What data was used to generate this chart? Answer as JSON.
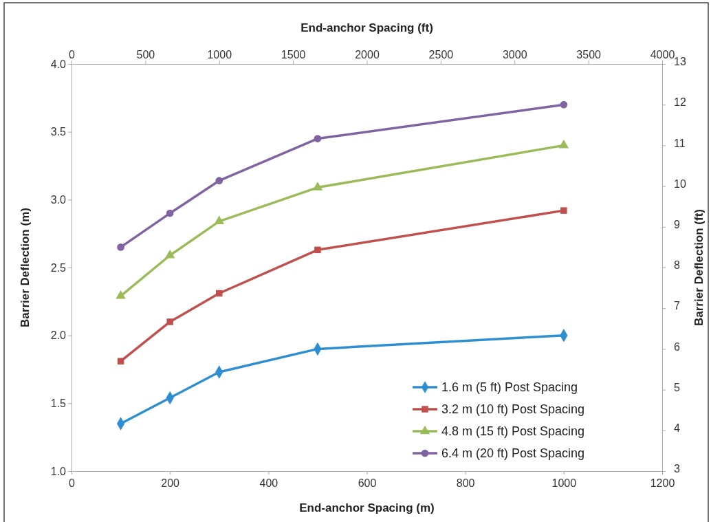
{
  "chart_data": {
    "type": "line",
    "xlabel": "End-anchor Spacing (m)",
    "ylabel": "Barrier Deflection (m)",
    "x2label": "End-anchor Spacing (ft)",
    "y2label": "Barrier Deflection (ft)",
    "x": [
      100,
      200,
      300,
      500,
      1000
    ],
    "series": [
      {
        "name": "1.6 m (5 ft) Post Spacing",
        "color": "#2e8fd0",
        "marker": "diamond",
        "values": [
          1.35,
          1.54,
          1.73,
          1.9,
          2.0
        ]
      },
      {
        "name": "3.2 m (10 ft) Post Spacing",
        "color": "#c0504d",
        "marker": "square",
        "values": [
          1.81,
          2.1,
          2.31,
          2.63,
          2.92
        ]
      },
      {
        "name": "4.8 m (15 ft) Post Spacing",
        "color": "#9bbb59",
        "marker": "triangle",
        "values": [
          2.29,
          2.59,
          2.84,
          3.09,
          3.4
        ]
      },
      {
        "name": "6.4 m (20 ft) Post Spacing",
        "color": "#8064a2",
        "marker": "circle",
        "values": [
          2.65,
          2.9,
          3.14,
          3.45,
          3.7
        ]
      }
    ],
    "xlim": [
      0,
      1200
    ],
    "xticks": [
      0,
      200,
      400,
      600,
      800,
      1000,
      1200
    ],
    "ylim": [
      1,
      4
    ],
    "yticks": [
      {
        "value": 1,
        "label": "1.0"
      },
      {
        "value": 1.5,
        "label": "1.5"
      },
      {
        "value": 2,
        "label": "2.0"
      },
      {
        "value": 2.5,
        "label": "2.5"
      },
      {
        "value": 3,
        "label": "3.0"
      },
      {
        "value": 3.5,
        "label": "3.5"
      },
      {
        "value": 4,
        "label": "4.0"
      }
    ],
    "x2lim": [
      0,
      4000
    ],
    "x2ticks": [
      0,
      500,
      1000,
      1500,
      2000,
      2500,
      3000,
      3500,
      4000
    ],
    "y2lim": [
      3,
      13
    ],
    "y2ticks": [
      3,
      4,
      5,
      6,
      7,
      8,
      9,
      10,
      11,
      12,
      13
    ],
    "grid": false,
    "legend": "bottom right",
    "line_style": "solid"
  }
}
